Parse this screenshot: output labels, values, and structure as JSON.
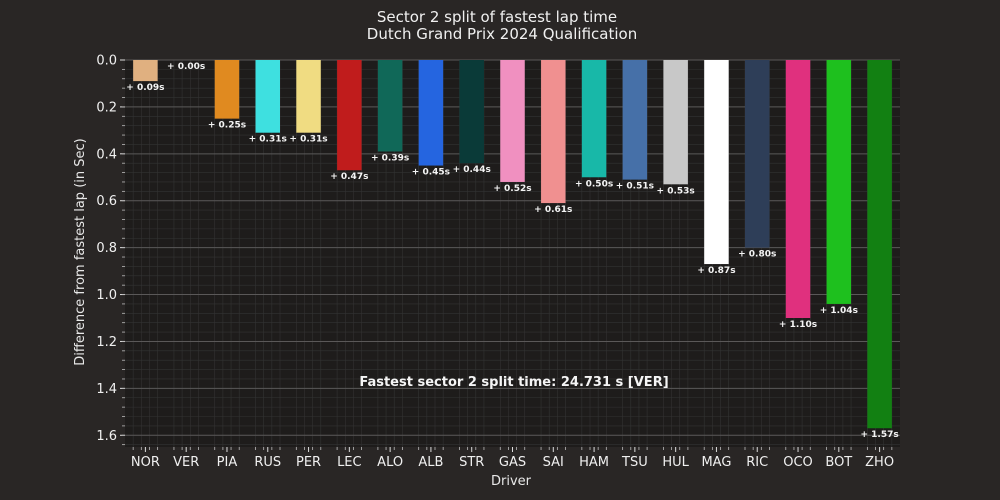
{
  "chart_data": {
    "type": "bar",
    "title_line1": "Sector 2 split of fastest lap time",
    "title_line2": "Dutch Grand Prix 2024 Qualification",
    "xlabel": "Driver",
    "ylabel": "Difference from fastest lap (in Sec)",
    "y_inverted": true,
    "ylim": [
      0,
      1.65
    ],
    "yticks": [
      "0.0",
      "0.2",
      "0.4",
      "0.6",
      "0.8",
      "1.0",
      "1.2",
      "1.4",
      "1.6"
    ],
    "categories": [
      "NOR",
      "VER",
      "PIA",
      "RUS",
      "PER",
      "LEC",
      "ALO",
      "ALB",
      "STR",
      "GAS",
      "SAI",
      "HAM",
      "TSU",
      "HUL",
      "MAG",
      "RIC",
      "OCO",
      "BOT",
      "ZHO"
    ],
    "values": [
      0.09,
      0.0,
      0.25,
      0.31,
      0.31,
      0.47,
      0.39,
      0.45,
      0.44,
      0.52,
      0.61,
      0.5,
      0.51,
      0.53,
      0.87,
      0.8,
      1.1,
      1.04,
      1.57
    ],
    "value_labels": [
      "+ 0.09s",
      "+ 0.00s",
      "+ 0.25s",
      "+ 0.31s",
      "+ 0.31s",
      "+ 0.47s",
      "+ 0.39s",
      "+ 0.45s",
      "+ 0.44s",
      "+ 0.52s",
      "+ 0.61s",
      "+ 0.50s",
      "+ 0.51s",
      "+ 0.53s",
      "+ 0.87s",
      "+ 0.80s",
      "+ 1.10s",
      "+ 1.04s",
      "+ 1.57s"
    ],
    "colors": [
      "#e0b080",
      "#3671c6",
      "#e08a20",
      "#3ee0e0",
      "#f0dc82",
      "#c01c1c",
      "#106858",
      "#2565e0",
      "#0a3a38",
      "#f090c0",
      "#f09090",
      "#18b8a8",
      "#4670a8",
      "#c8c8c8",
      "#ffffff",
      "#2e3e58",
      "#e0307e",
      "#1ec01e",
      "#128012"
    ],
    "annotation": "Fastest sector 2 split time: 24.731 s [VER]",
    "grid": true,
    "legend": "none"
  }
}
